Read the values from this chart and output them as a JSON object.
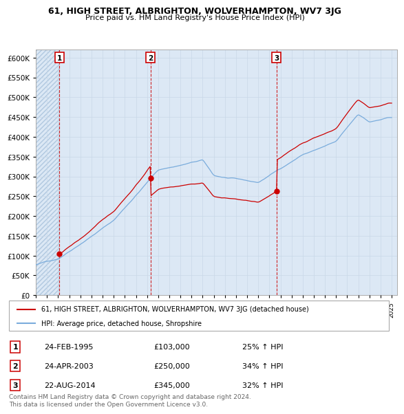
{
  "title1": "61, HIGH STREET, ALBRIGHTON, WOLVERHAMPTON, WV7 3JG",
  "title2": "Price paid vs. HM Land Registry's House Price Index (HPI)",
  "legend_label1": "61, HIGH STREET, ALBRIGHTON, WOLVERHAMPTON, WV7 3JG (detached house)",
  "legend_label2": "HPI: Average price, detached house, Shropshire",
  "sale_color": "#cc0000",
  "hpi_color": "#7aacdc",
  "bg_color": "#dce8f5",
  "hatch_color": "#c0d0e0",
  "grid_color": "#c8d8e8",
  "table_rows": [
    {
      "num": "1",
      "date": "24-FEB-1995",
      "price": "£103,000",
      "change": "25% ↑ HPI"
    },
    {
      "num": "2",
      "date": "24-APR-2003",
      "price": "£250,000",
      "change": "34% ↑ HPI"
    },
    {
      "num": "3",
      "date": "22-AUG-2014",
      "price": "£345,000",
      "change": "32% ↑ HPI"
    }
  ],
  "footnote": "Contains HM Land Registry data © Crown copyright and database right 2024.\nThis data is licensed under the Open Government Licence v3.0.",
  "ylim": [
    0,
    620000
  ],
  "yticks": [
    0,
    50000,
    100000,
    150000,
    200000,
    250000,
    300000,
    350000,
    400000,
    450000,
    500000,
    550000,
    600000
  ],
  "sale_dates": [
    1995.12,
    2003.31,
    2014.64
  ],
  "sale_prices": [
    103000,
    250000,
    345000
  ],
  "marker_nums": [
    "1",
    "2",
    "3"
  ],
  "xstart": 1993.0,
  "xend": 2025.5
}
